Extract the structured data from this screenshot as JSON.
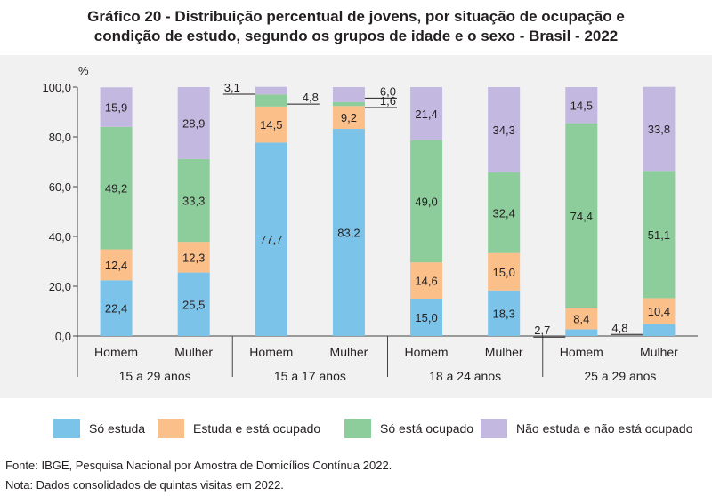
{
  "title_line1": "Gráfico 20 - Distribuição percentual de jovens, por situação de ocupação e",
  "title_line2": "condição de estudo, segundo os grupos de idade e o sexo - Brasil - 2022",
  "source": "Fonte: IBGE, Pesquisa Nacional por Amostra de Domicílios Contínua 2022.",
  "note": "Nota: Dados consolidados de quintas visitas em 2022.",
  "colors": {
    "so_estuda": "#7cc3ea",
    "estuda_ocupado": "#fbbf89",
    "so_ocupado": "#8dcd9c",
    "nem": "#c3b8e0"
  },
  "chart_data": {
    "type": "bar",
    "stacked": true,
    "y_unit": "%",
    "ylim": [
      0,
      100
    ],
    "yticks": [
      "0,0",
      "20,0",
      "40,0",
      "60,0",
      "80,0",
      "100,0"
    ],
    "groups": [
      "15 a 29 anos",
      "15 a 17 anos",
      "18 a 24 anos",
      "25 a 29 anos"
    ],
    "categories": [
      "Homem",
      "Mulher",
      "Homem",
      "Mulher",
      "Homem",
      "Mulher",
      "Homem",
      "Mulher"
    ],
    "series": [
      {
        "name": "Só estuda",
        "values": [
          22.4,
          25.5,
          77.7,
          83.2,
          15.0,
          18.3,
          2.7,
          4.8
        ],
        "labels": [
          "22,4",
          "25,5",
          "77,7",
          "83,2",
          "15,0",
          "18,3",
          "2,7",
          "4,8"
        ]
      },
      {
        "name": "Estuda e está ocupado",
        "values": [
          12.4,
          12.3,
          14.5,
          9.2,
          14.6,
          15.0,
          8.4,
          10.4
        ],
        "labels": [
          "12,4",
          "12,3",
          "14,5",
          "9,2",
          "14,6",
          "15,0",
          "8,4",
          "10,4"
        ]
      },
      {
        "name": "Só está ocupado",
        "values": [
          49.2,
          33.3,
          4.8,
          1.6,
          49.0,
          32.4,
          74.4,
          51.1
        ],
        "labels": [
          "49,2",
          "33,3",
          "4,8",
          "1,6",
          "49,0",
          "32,4",
          "74,4",
          "51,1"
        ]
      },
      {
        "name": "Não estuda e não está ocupado",
        "values": [
          15.9,
          28.9,
          3.1,
          6.0,
          21.4,
          34.3,
          14.5,
          33.8
        ],
        "labels": [
          "15,9",
          "28,9",
          "3,1",
          "6,0",
          "21,4",
          "34,3",
          "14,5",
          "33,8"
        ]
      }
    ],
    "grid": false,
    "legend_position": "bottom"
  }
}
